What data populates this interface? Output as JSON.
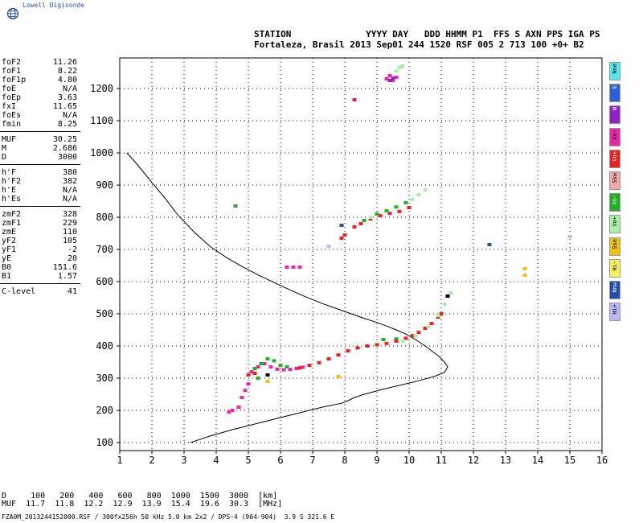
{
  "logo": {
    "text": "Lowell Digisonde"
  },
  "header": {
    "line1": "STATION              YYYY DAY   DDD HHMM P1  FFS S AXN PPS IGA PS",
    "line2": "Fortaleza, Brasil 2013 Sep01 244 1520 RSF 005 2 713 100 +0+ B2"
  },
  "params": {
    "group1": [
      {
        "k": "foF2",
        "v": "11.26"
      },
      {
        "k": "foF1",
        "v": "8.22"
      },
      {
        "k": "foF1p",
        "v": "4.80"
      },
      {
        "k": "foE",
        "v": "N/A"
      },
      {
        "k": "foEp",
        "v": "3.63"
      },
      {
        "k": "fxI",
        "v": "11.65"
      },
      {
        "k": "foEs",
        "v": "N/A"
      },
      {
        "k": "fmin",
        "v": "8.25"
      }
    ],
    "group2": [
      {
        "k": "MUF",
        "v": "30.25"
      },
      {
        "k": "M",
        "v": "2.686"
      },
      {
        "k": "D",
        "v": "3000"
      }
    ],
    "group3": [
      {
        "k": "h'F",
        "v": "380"
      },
      {
        "k": "h'F2",
        "v": "382"
      },
      {
        "k": "h'E",
        "v": "N/A"
      },
      {
        "k": "h'Es",
        "v": "N/A"
      }
    ],
    "group4": [
      {
        "k": "zmF2",
        "v": "328"
      },
      {
        "k": "zmF1",
        "v": "229"
      },
      {
        "k": "zmE",
        "v": "110"
      },
      {
        "k": "yF2",
        "v": "105"
      },
      {
        "k": "yF1",
        "v": "-2"
      },
      {
        "k": "yE",
        "v": "20"
      },
      {
        "k": "B0",
        "v": "151.6"
      },
      {
        "k": "B1",
        "v": "1.57"
      }
    ],
    "group5": [
      {
        "k": "C-level",
        "v": "41"
      }
    ]
  },
  "legend": [
    {
      "label": "Nne",
      "color": "#55e8ee"
    },
    {
      "label": "E",
      "color": "#2f5fd8"
    },
    {
      "label": "W",
      "color": "#8e24c8"
    },
    {
      "label": "Vo-",
      "color": "#e828a8"
    },
    {
      "label": "Vo+",
      "color": "#e82222"
    },
    {
      "label": "Ssw",
      "color": "#f0a8a8"
    },
    {
      "label": "Vo-",
      "color": "#22b022"
    },
    {
      "label": "Vo+",
      "color": "#a8f0a8"
    },
    {
      "label": "Sse",
      "color": "#f0c010"
    },
    {
      "label": "Hi-",
      "color": "#f8f060"
    },
    {
      "label": "Nnw",
      "color": "#1f4fa8"
    },
    {
      "label": "Hi+",
      "color": "#b8b8f8"
    }
  ],
  "bottom": {
    "line1": "D     100   200   400   600   800  1000  1500  3000  [km]",
    "line2": "MUF  11.7  11.8  12.2  12.9  13.9  15.4  19.6  30.3  [MHz]"
  },
  "footer": "FZA0M_2013244152000.RSF / 300fx256h 50 kHz 5.0 km 2x2 / DPS-4 (904-904)  3.9 S 321.6 E",
  "chart_data": {
    "type": "scatter",
    "xlim": [
      1,
      16
    ],
    "ylim": [
      75,
      1295
    ],
    "x_ticks": [
      1,
      2,
      3,
      4,
      5,
      6,
      7,
      8,
      9,
      10,
      11,
      12,
      13,
      14,
      15,
      16
    ],
    "y_ticks": [
      100,
      200,
      300,
      400,
      500,
      600,
      700,
      800,
      900,
      1000,
      1100,
      1200
    ],
    "grid": true,
    "profile": [
      [
        11.2,
        335
      ],
      [
        11.1,
        350
      ],
      [
        10.9,
        370
      ],
      [
        10.7,
        385
      ],
      [
        10.5,
        400
      ],
      [
        10.2,
        420
      ],
      [
        9.9,
        437
      ],
      [
        9.6,
        450
      ],
      [
        9.3,
        462
      ],
      [
        9.0,
        473
      ],
      [
        8.6,
        486
      ],
      [
        8.2,
        500
      ],
      [
        7.8,
        514
      ],
      [
        7.3,
        532
      ],
      [
        6.8,
        552
      ],
      [
        6.3,
        574
      ],
      [
        5.8,
        597
      ],
      [
        5.3,
        621
      ],
      [
        4.8,
        647
      ],
      [
        4.3,
        676
      ],
      [
        3.8,
        710
      ],
      [
        3.3,
        755
      ],
      [
        2.8,
        808
      ],
      [
        2.4,
        860
      ],
      [
        2.0,
        908
      ],
      [
        1.7,
        945
      ],
      [
        1.45,
        975
      ],
      [
        1.22,
        1000
      ]
    ],
    "profile_lower": [
      [
        11.2,
        335
      ],
      [
        11.1,
        318
      ],
      [
        10.8,
        306
      ],
      [
        10.3,
        292
      ],
      [
        9.8,
        280
      ],
      [
        9.2,
        266
      ],
      [
        8.6,
        250
      ],
      [
        8.3,
        240
      ],
      [
        8.1,
        230
      ],
      [
        7.9,
        222
      ],
      [
        7.3,
        210
      ],
      [
        6.5,
        190
      ],
      [
        5.5,
        165
      ],
      [
        4.5,
        140
      ],
      [
        3.8,
        120
      ],
      [
        3.2,
        100
      ]
    ],
    "series": [
      {
        "color": "#e828a8",
        "points": [
          [
            5.1,
            320
          ],
          [
            5.3,
            335
          ],
          [
            5.5,
            345
          ],
          [
            5.7,
            335
          ],
          [
            5.9,
            328
          ],
          [
            6.1,
            326
          ],
          [
            6.3,
            327
          ],
          [
            6.5,
            330
          ],
          [
            6.7,
            334
          ]
        ]
      },
      {
        "color": "#e828a8",
        "points": [
          [
            4.4,
            195
          ],
          [
            4.5,
            200
          ],
          [
            4.7,
            210
          ],
          [
            4.8,
            240
          ],
          [
            4.9,
            262
          ],
          [
            5.0,
            282
          ]
        ]
      },
      {
        "color": "#22b022",
        "points": [
          [
            5.2,
            330
          ],
          [
            5.4,
            345
          ],
          [
            5.6,
            360
          ],
          [
            5.8,
            354
          ],
          [
            6.0,
            340
          ],
          [
            6.2,
            335
          ],
          [
            9.2,
            420
          ],
          [
            9.6,
            422
          ]
        ]
      },
      {
        "color": "#e82222",
        "points": [
          [
            5.0,
            310
          ],
          [
            5.2,
            315
          ],
          [
            6.6,
            332
          ],
          [
            6.9,
            340
          ],
          [
            7.2,
            348
          ],
          [
            7.5,
            360
          ],
          [
            7.8,
            372
          ],
          [
            8.1,
            385
          ],
          [
            8.4,
            394
          ],
          [
            8.7,
            400
          ],
          [
            9.0,
            404
          ],
          [
            9.3,
            408
          ],
          [
            9.6,
            415
          ],
          [
            9.9,
            424
          ],
          [
            10.1,
            432
          ],
          [
            10.3,
            442
          ],
          [
            10.5,
            455
          ],
          [
            10.7,
            470
          ],
          [
            10.9,
            490
          ],
          [
            11.0,
            500
          ]
        ]
      },
      {
        "color": "#a8f0a8",
        "points": [
          [
            9.8,
            415
          ],
          [
            10.2,
            430
          ],
          [
            10.6,
            460
          ],
          [
            10.9,
            495
          ],
          [
            11.1,
            530
          ],
          [
            11.3,
            565
          ]
        ]
      },
      {
        "color": "#e82222",
        "points": [
          [
            7.9,
            735
          ],
          [
            8.0,
            745
          ],
          [
            8.3,
            770
          ],
          [
            8.5,
            780
          ],
          [
            8.8,
            795
          ],
          [
            9.1,
            805
          ],
          [
            9.4,
            812
          ],
          [
            9.7,
            818
          ],
          [
            10.0,
            830
          ]
        ]
      },
      {
        "color": "#22b022",
        "points": [
          [
            8.6,
            790
          ],
          [
            9.0,
            810
          ],
          [
            9.3,
            820
          ],
          [
            9.6,
            832
          ],
          [
            9.9,
            845
          ]
        ]
      },
      {
        "color": "#a8f0a8",
        "points": [
          [
            10.1,
            855
          ],
          [
            10.3,
            870
          ],
          [
            10.5,
            885
          ],
          [
            8.8,
            800
          ]
        ]
      },
      {
        "color": "#e828a8",
        "points": [
          [
            9.3,
            1230
          ],
          [
            9.4,
            1240
          ],
          [
            9.5,
            1225
          ],
          [
            9.6,
            1235
          ]
        ]
      },
      {
        "color": "#8e24c8",
        "points": [
          [
            9.4,
            1225
          ],
          [
            9.5,
            1232
          ]
        ]
      },
      {
        "color": "#a8f0a8",
        "points": [
          [
            9.6,
            1255
          ],
          [
            9.7,
            1265
          ],
          [
            9.8,
            1270
          ]
        ]
      },
      {
        "color": "#e828a8",
        "points": [
          [
            6.2,
            645
          ],
          [
            6.4,
            645
          ],
          [
            6.6,
            645
          ]
        ]
      },
      {
        "color": "#e82222",
        "points": [
          [
            8.3,
            1165
          ]
        ]
      },
      {
        "color": "#22b022",
        "points": [
          [
            4.6,
            835
          ],
          [
            5.3,
            300
          ]
        ]
      },
      {
        "color": "#f0c010",
        "points": [
          [
            7.8,
            305
          ],
          [
            5.6,
            290
          ],
          [
            13.6,
            640
          ],
          [
            13.6,
            620
          ]
        ]
      },
      {
        "color": "#1f4fa8",
        "points": [
          [
            12.5,
            715
          ],
          [
            7.9,
            775
          ]
        ]
      },
      {
        "color": "#b8b8f8",
        "points": [
          [
            7.5,
            710
          ],
          [
            15.0,
            740
          ]
        ]
      },
      {
        "color": "#000000",
        "points": [
          [
            5.6,
            310
          ],
          [
            11.2,
            555
          ]
        ]
      }
    ]
  }
}
